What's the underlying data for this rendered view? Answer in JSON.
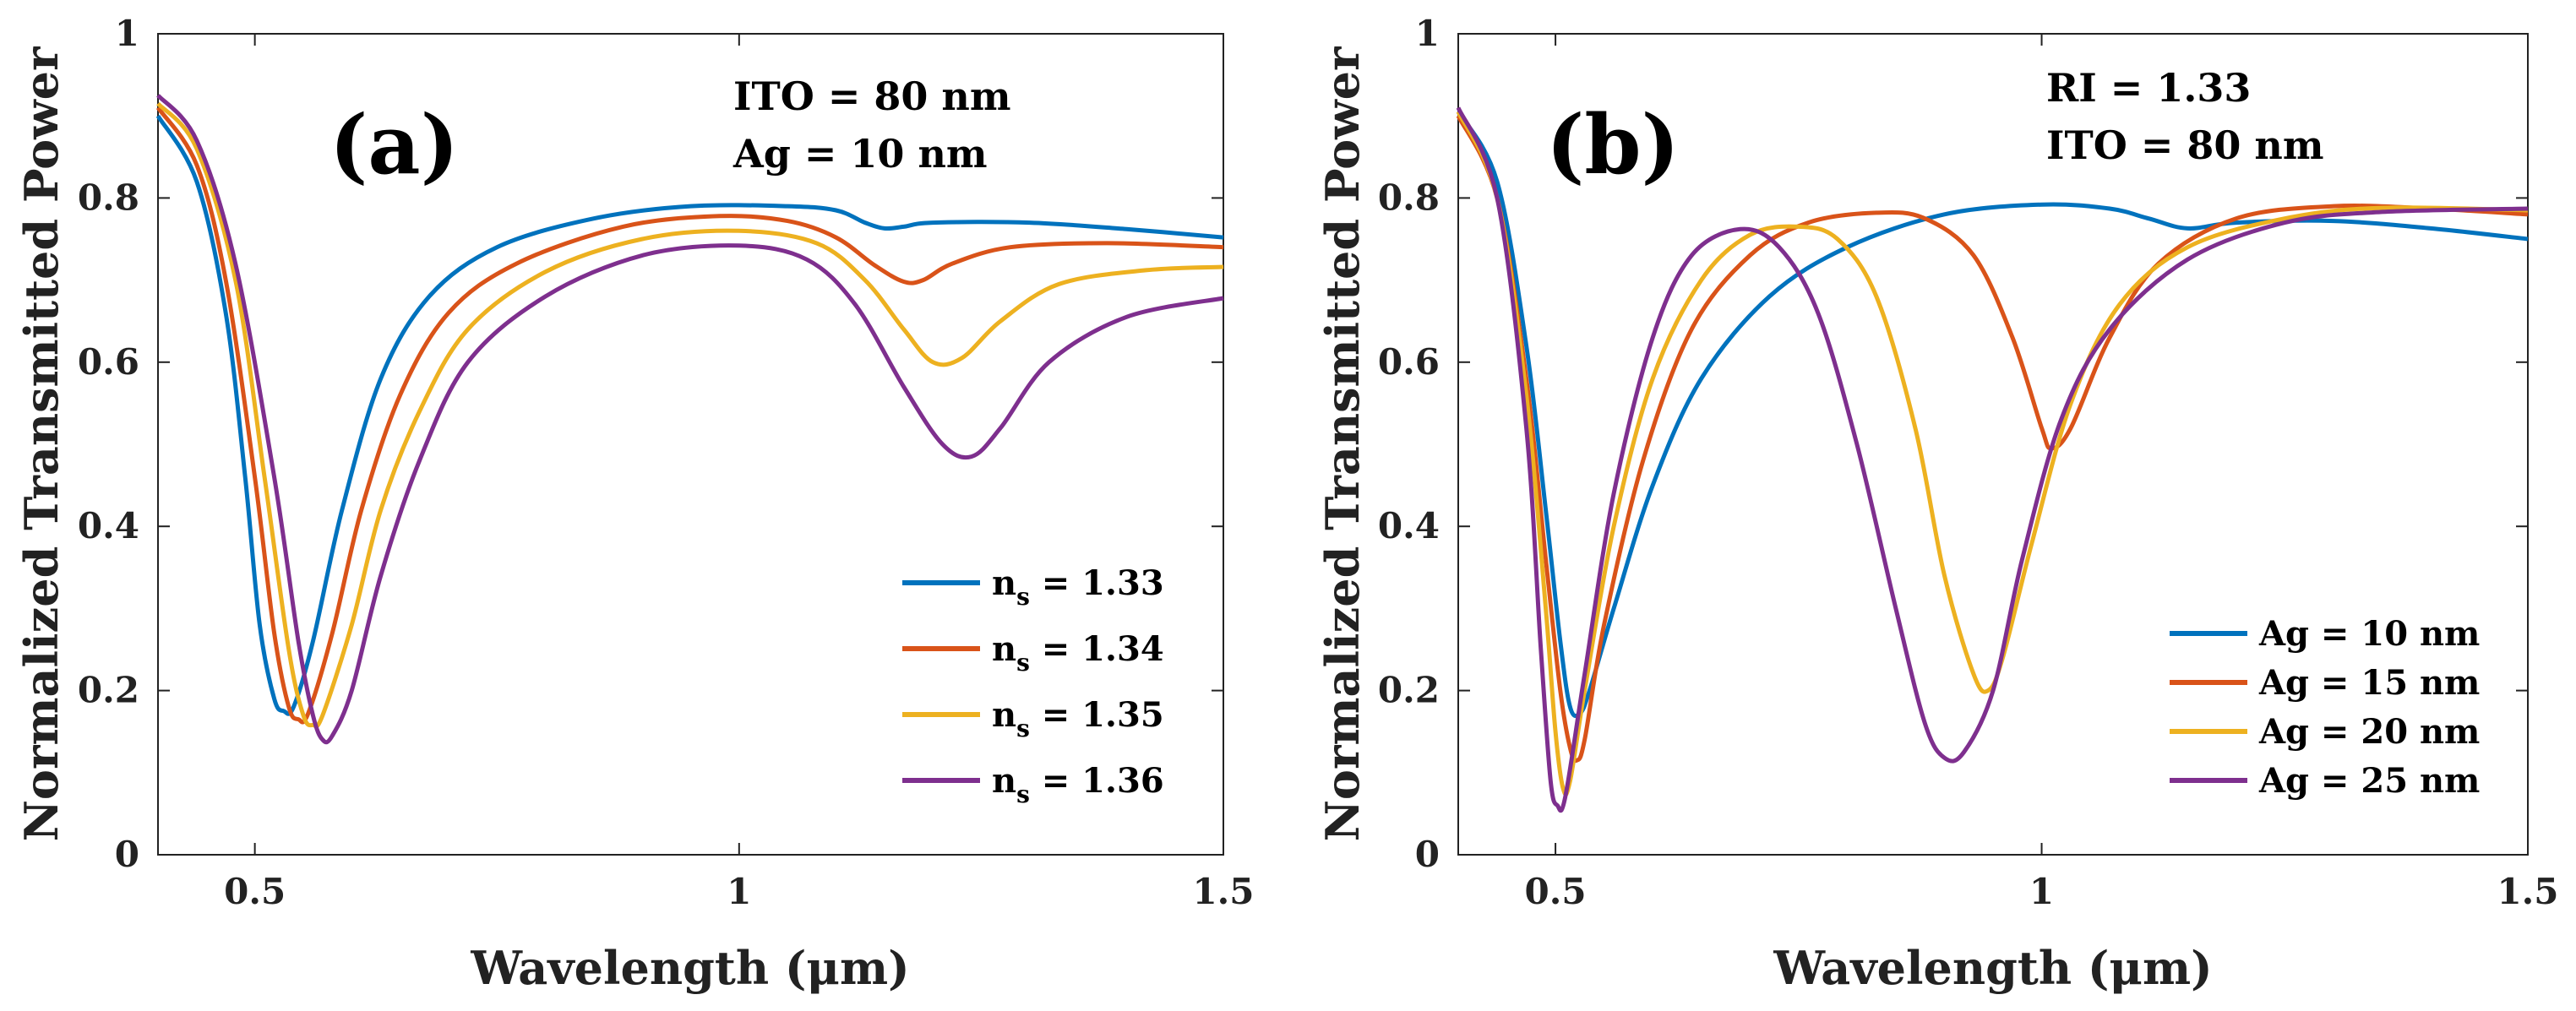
{
  "chart_data": [
    {
      "id": "a",
      "type": "line",
      "panel_label": "(a)",
      "annotations": [
        "ITO = 80 nm",
        "Ag = 10 nm"
      ],
      "xlabel": "Wavelength (μm)",
      "ylabel": "Normalized Transmitted Power",
      "xlim": [
        0.4,
        1.5
      ],
      "ylim": [
        0,
        1
      ],
      "xticks": [
        0.5,
        1,
        1.5
      ],
      "xtick_labels": [
        "0.5",
        "1",
        "1.5"
      ],
      "yticks": [
        0,
        0.2,
        0.4,
        0.6,
        0.8,
        1
      ],
      "ytick_labels": [
        "0",
        "0.2",
        "0.4",
        "0.6",
        "0.8",
        "1"
      ],
      "grid": false,
      "legend_position": "bottom-right",
      "series": [
        {
          "name": "n_s = 1.33",
          "label_main": "n",
          "label_sub": "s",
          "label_rest": " = 1.33",
          "color": "#0072BD",
          "points": [
            [
              0.4,
              0.9
            ],
            [
              0.44,
              0.82
            ],
            [
              0.47,
              0.66
            ],
            [
              0.49,
              0.46
            ],
            [
              0.505,
              0.28
            ],
            [
              0.52,
              0.19
            ],
            [
              0.53,
              0.175
            ],
            [
              0.54,
              0.18
            ],
            [
              0.56,
              0.26
            ],
            [
              0.59,
              0.42
            ],
            [
              0.63,
              0.58
            ],
            [
              0.68,
              0.68
            ],
            [
              0.75,
              0.74
            ],
            [
              0.85,
              0.775
            ],
            [
              0.95,
              0.79
            ],
            [
              1.05,
              0.79
            ],
            [
              1.1,
              0.785
            ],
            [
              1.13,
              0.77
            ],
            [
              1.15,
              0.763
            ],
            [
              1.17,
              0.765
            ],
            [
              1.2,
              0.77
            ],
            [
              1.3,
              0.77
            ],
            [
              1.4,
              0.762
            ],
            [
              1.5,
              0.752
            ]
          ]
        },
        {
          "name": "n_s = 1.34",
          "label_main": "n",
          "label_sub": "s",
          "label_rest": " = 1.34",
          "color": "#D95319",
          "points": [
            [
              0.4,
              0.91
            ],
            [
              0.44,
              0.84
            ],
            [
              0.47,
              0.7
            ],
            [
              0.5,
              0.46
            ],
            [
              0.52,
              0.27
            ],
            [
              0.535,
              0.18
            ],
            [
              0.545,
              0.165
            ],
            [
              0.555,
              0.172
            ],
            [
              0.58,
              0.27
            ],
            [
              0.61,
              0.42
            ],
            [
              0.65,
              0.56
            ],
            [
              0.7,
              0.66
            ],
            [
              0.77,
              0.72
            ],
            [
              0.88,
              0.765
            ],
            [
              0.98,
              0.778
            ],
            [
              1.05,
              0.772
            ],
            [
              1.1,
              0.752
            ],
            [
              1.14,
              0.718
            ],
            [
              1.17,
              0.698
            ],
            [
              1.19,
              0.7
            ],
            [
              1.22,
              0.72
            ],
            [
              1.28,
              0.74
            ],
            [
              1.38,
              0.745
            ],
            [
              1.5,
              0.74
            ]
          ]
        },
        {
          "name": "n_s = 1.35",
          "label_main": "n",
          "label_sub": "s",
          "label_rest": " = 1.35",
          "color": "#EDB120",
          "points": [
            [
              0.4,
              0.915
            ],
            [
              0.44,
              0.86
            ],
            [
              0.48,
              0.7
            ],
            [
              0.51,
              0.46
            ],
            [
              0.535,
              0.25
            ],
            [
              0.55,
              0.17
            ],
            [
              0.56,
              0.158
            ],
            [
              0.57,
              0.17
            ],
            [
              0.6,
              0.28
            ],
            [
              0.63,
              0.42
            ],
            [
              0.67,
              0.54
            ],
            [
              0.72,
              0.64
            ],
            [
              0.8,
              0.71
            ],
            [
              0.9,
              0.75
            ],
            [
              1.0,
              0.76
            ],
            [
              1.08,
              0.745
            ],
            [
              1.13,
              0.7
            ],
            [
              1.17,
              0.64
            ],
            [
              1.2,
              0.6
            ],
            [
              1.23,
              0.605
            ],
            [
              1.27,
              0.65
            ],
            [
              1.33,
              0.695
            ],
            [
              1.42,
              0.712
            ],
            [
              1.5,
              0.716
            ]
          ]
        },
        {
          "name": "n_s = 1.36",
          "label_main": "n",
          "label_sub": "s",
          "label_rest": " = 1.36",
          "color": "#7E2F8E",
          "points": [
            [
              0.4,
              0.925
            ],
            [
              0.44,
              0.87
            ],
            [
              0.48,
              0.72
            ],
            [
              0.52,
              0.46
            ],
            [
              0.545,
              0.26
            ],
            [
              0.56,
              0.17
            ],
            [
              0.57,
              0.14
            ],
            [
              0.58,
              0.145
            ],
            [
              0.6,
              0.2
            ],
            [
              0.63,
              0.34
            ],
            [
              0.67,
              0.48
            ],
            [
              0.72,
              0.6
            ],
            [
              0.8,
              0.68
            ],
            [
              0.9,
              0.73
            ],
            [
              1.0,
              0.742
            ],
            [
              1.07,
              0.725
            ],
            [
              1.12,
              0.67
            ],
            [
              1.17,
              0.57
            ],
            [
              1.21,
              0.5
            ],
            [
              1.24,
              0.485
            ],
            [
              1.27,
              0.52
            ],
            [
              1.32,
              0.6
            ],
            [
              1.4,
              0.655
            ],
            [
              1.5,
              0.678
            ]
          ]
        }
      ]
    },
    {
      "id": "b",
      "type": "line",
      "panel_label": "(b)",
      "annotations": [
        "RI = 1.33",
        "ITO = 80 nm"
      ],
      "xlabel": "Wavelength (μm)",
      "ylabel": "Normalized Transmitted Power",
      "xlim": [
        0.4,
        1.5
      ],
      "ylim": [
        0,
        1
      ],
      "xticks": [
        0.5,
        1,
        1.5
      ],
      "xtick_labels": [
        "0.5",
        "1",
        "1.5"
      ],
      "yticks": [
        0,
        0.2,
        0.4,
        0.6,
        0.8,
        1
      ],
      "ytick_labels": [
        "0",
        "0.2",
        "0.4",
        "0.6",
        "0.8",
        "1"
      ],
      "grid": false,
      "legend_position": "bottom-right",
      "series": [
        {
          "name": "Ag = 10 nm",
          "label_main": "Ag = 10 nm",
          "label_sub": "",
          "label_rest": "",
          "color": "#0072BD",
          "points": [
            [
              0.4,
              0.905
            ],
            [
              0.44,
              0.82
            ],
            [
              0.47,
              0.62
            ],
            [
              0.49,
              0.42
            ],
            [
              0.505,
              0.26
            ],
            [
              0.515,
              0.18
            ],
            [
              0.525,
              0.172
            ],
            [
              0.535,
              0.2
            ],
            [
              0.56,
              0.3
            ],
            [
              0.6,
              0.45
            ],
            [
              0.65,
              0.58
            ],
            [
              0.72,
              0.68
            ],
            [
              0.8,
              0.74
            ],
            [
              0.9,
              0.78
            ],
            [
              1.0,
              0.792
            ],
            [
              1.07,
              0.787
            ],
            [
              1.11,
              0.775
            ],
            [
              1.15,
              0.763
            ],
            [
              1.2,
              0.77
            ],
            [
              1.3,
              0.772
            ],
            [
              1.4,
              0.763
            ],
            [
              1.5,
              0.75
            ]
          ]
        },
        {
          "name": "Ag = 15 nm",
          "label_main": "Ag = 15 nm",
          "label_sub": "",
          "label_rest": "",
          "color": "#D95319",
          "points": [
            [
              0.4,
              0.9
            ],
            [
              0.44,
              0.8
            ],
            [
              0.47,
              0.58
            ],
            [
              0.49,
              0.36
            ],
            [
              0.505,
              0.2
            ],
            [
              0.515,
              0.13
            ],
            [
              0.522,
              0.115
            ],
            [
              0.53,
              0.14
            ],
            [
              0.55,
              0.28
            ],
            [
              0.59,
              0.48
            ],
            [
              0.64,
              0.64
            ],
            [
              0.7,
              0.73
            ],
            [
              0.76,
              0.77
            ],
            [
              0.83,
              0.782
            ],
            [
              0.88,
              0.775
            ],
            [
              0.93,
              0.73
            ],
            [
              0.97,
              0.63
            ],
            [
              1.0,
              0.52
            ],
            [
              1.01,
              0.495
            ],
            [
              1.03,
              0.52
            ],
            [
              1.07,
              0.63
            ],
            [
              1.12,
              0.72
            ],
            [
              1.2,
              0.775
            ],
            [
              1.3,
              0.79
            ],
            [
              1.4,
              0.787
            ],
            [
              1.5,
              0.78
            ]
          ]
        },
        {
          "name": "Ag = 20 nm",
          "label_main": "Ag = 20 nm",
          "label_sub": "",
          "label_rest": "",
          "color": "#EDB120",
          "points": [
            [
              0.4,
              0.905
            ],
            [
              0.44,
              0.8
            ],
            [
              0.47,
              0.56
            ],
            [
              0.49,
              0.3
            ],
            [
              0.5,
              0.15
            ],
            [
              0.508,
              0.08
            ],
            [
              0.515,
              0.09
            ],
            [
              0.53,
              0.2
            ],
            [
              0.56,
              0.4
            ],
            [
              0.6,
              0.58
            ],
            [
              0.65,
              0.7
            ],
            [
              0.7,
              0.755
            ],
            [
              0.75,
              0.765
            ],
            [
              0.79,
              0.75
            ],
            [
              0.83,
              0.68
            ],
            [
              0.87,
              0.52
            ],
            [
              0.9,
              0.34
            ],
            [
              0.93,
              0.22
            ],
            [
              0.945,
              0.2
            ],
            [
              0.96,
              0.24
            ],
            [
              0.99,
              0.38
            ],
            [
              1.03,
              0.55
            ],
            [
              1.08,
              0.67
            ],
            [
              1.15,
              0.74
            ],
            [
              1.25,
              0.775
            ],
            [
              1.35,
              0.788
            ],
            [
              1.5,
              0.785
            ]
          ]
        },
        {
          "name": "Ag = 25 nm",
          "label_main": "Ag = 25 nm",
          "label_sub": "",
          "label_rest": "",
          "color": "#7E2F8E",
          "points": [
            [
              0.4,
              0.91
            ],
            [
              0.44,
              0.8
            ],
            [
              0.47,
              0.52
            ],
            [
              0.485,
              0.25
            ],
            [
              0.495,
              0.09
            ],
            [
              0.502,
              0.06
            ],
            [
              0.51,
              0.07
            ],
            [
              0.53,
              0.22
            ],
            [
              0.56,
              0.44
            ],
            [
              0.6,
              0.63
            ],
            [
              0.64,
              0.73
            ],
            [
              0.69,
              0.762
            ],
            [
              0.73,
              0.74
            ],
            [
              0.77,
              0.66
            ],
            [
              0.81,
              0.5
            ],
            [
              0.85,
              0.3
            ],
            [
              0.88,
              0.16
            ],
            [
              0.9,
              0.118
            ],
            [
              0.92,
              0.125
            ],
            [
              0.95,
              0.2
            ],
            [
              0.98,
              0.36
            ],
            [
              1.02,
              0.53
            ],
            [
              1.07,
              0.64
            ],
            [
              1.15,
              0.725
            ],
            [
              1.25,
              0.77
            ],
            [
              1.35,
              0.783
            ],
            [
              1.5,
              0.787
            ]
          ]
        }
      ]
    }
  ]
}
